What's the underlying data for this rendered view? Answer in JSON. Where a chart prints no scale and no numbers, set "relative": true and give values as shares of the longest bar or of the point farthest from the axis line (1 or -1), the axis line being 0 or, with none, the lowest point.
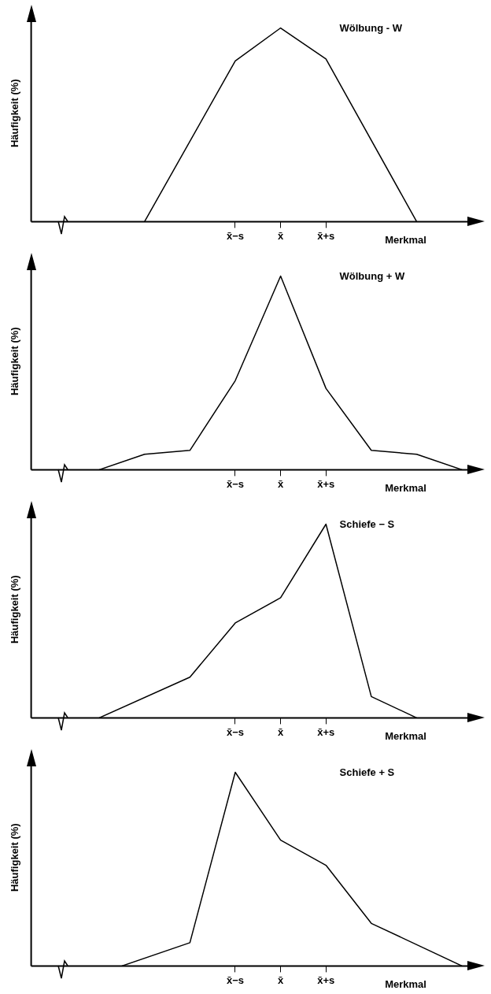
{
  "chart_data": [
    {
      "type": "line",
      "title": "Wölbung - W",
      "ylabel": "Häufigkeit (%)",
      "xlabel": "Merkmal",
      "relative": true,
      "categories": [
        null,
        null,
        null,
        null,
        null,
        null,
        null,
        null,
        null,
        "x̄−s",
        null,
        "x̄",
        null,
        "x̄+s",
        null,
        null,
        null,
        null,
        null,
        null,
        null
      ],
      "series": [
        {
          "color": "#000000",
          "values": [
            null,
            null,
            null,
            null,
            null,
            0,
            null,
            null,
            null,
            0.83,
            null,
            1,
            null,
            0.84,
            null,
            null,
            null,
            0,
            null,
            null,
            null
          ]
        }
      ]
    },
    {
      "type": "line",
      "title": "Wölbung + W",
      "ylabel": "Häufigkeit (%)",
      "xlabel": "Merkmal",
      "relative": true,
      "categories": [
        null,
        null,
        null,
        null,
        null,
        null,
        null,
        null,
        null,
        "x̄−s",
        null,
        "x̄",
        null,
        "x̄+s",
        null,
        null,
        null,
        null,
        null,
        null,
        null
      ],
      "series": [
        {
          "color": "#000000",
          "values": [
            null,
            null,
            null,
            0,
            null,
            0.08,
            null,
            0.1,
            null,
            0.46,
            null,
            1,
            null,
            0.42,
            null,
            0.1,
            null,
            0.08,
            null,
            0,
            null
          ]
        }
      ]
    },
    {
      "type": "line",
      "title": "Schiefe − S",
      "ylabel": "Häufigkeit (%)",
      "xlabel": "Merkmal",
      "relative": true,
      "categories": [
        null,
        null,
        null,
        null,
        null,
        null,
        null,
        null,
        null,
        "x̄−s",
        null,
        "x̄",
        null,
        "x̄+s",
        null,
        null,
        null,
        null,
        null,
        null,
        null
      ],
      "series": [
        {
          "color": "#000000",
          "values": [
            null,
            null,
            null,
            0,
            null,
            null,
            null,
            0.21,
            null,
            0.49,
            null,
            0.62,
            null,
            1,
            null,
            0.11,
            null,
            0,
            null,
            null,
            null
          ]
        }
      ]
    },
    {
      "type": "line",
      "title": "Schiefe + S",
      "ylabel": "Häufigkeit (%)",
      "xlabel": "Merkmal",
      "relative": true,
      "categories": [
        null,
        null,
        null,
        null,
        null,
        null,
        null,
        null,
        null,
        "x̄−s",
        null,
        "x̄",
        null,
        "x̄+s",
        null,
        null,
        null,
        null,
        null,
        null,
        null
      ],
      "series": [
        {
          "color": "#000000",
          "values": [
            null,
            null,
            null,
            null,
            0,
            null,
            null,
            0.12,
            null,
            1,
            null,
            0.65,
            null,
            0.52,
            null,
            0.22,
            null,
            null,
            null,
            0,
            null
          ]
        }
      ]
    }
  ]
}
